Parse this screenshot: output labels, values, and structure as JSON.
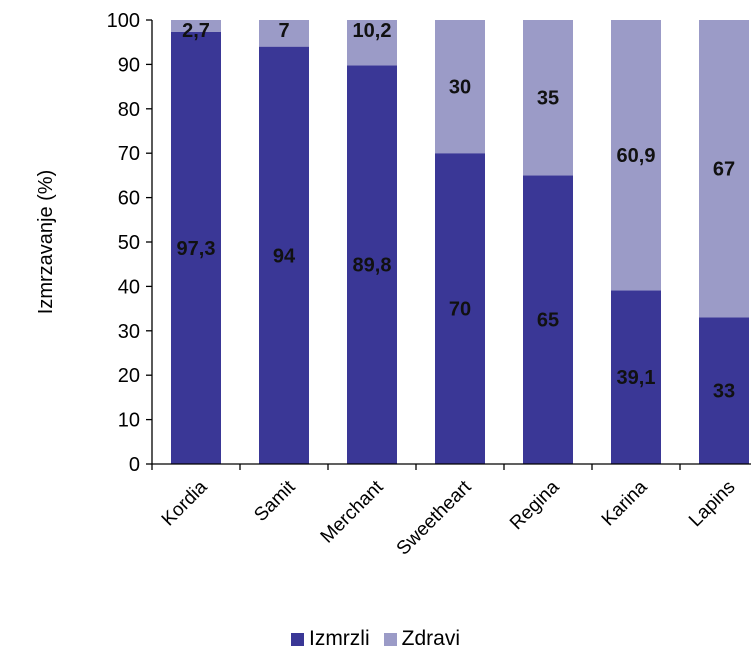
{
  "chart_data": {
    "type": "bar",
    "stacked": true,
    "categories": [
      "Kordia",
      "Samit",
      "Merchant",
      "Sweetheart",
      "Regina",
      "Karina",
      "Lapins"
    ],
    "series": [
      {
        "name": "Izmrzli",
        "values": [
          97.3,
          94,
          89.8,
          70,
          65,
          39.1,
          33
        ],
        "labels": [
          "97,3",
          "94",
          "89,8",
          "70",
          "65",
          "39,1",
          "33"
        ],
        "color": "#3a3796"
      },
      {
        "name": "Zdravi",
        "values": [
          2.7,
          7,
          10.2,
          30,
          35,
          60.9,
          67
        ],
        "labels": [
          "2,7",
          "7",
          "10,2",
          "30",
          "35",
          "60,9",
          "67"
        ],
        "color": "#9b9bc7"
      }
    ],
    "ylabel": "Izmrzavanje  (%)",
    "xlabel": "",
    "ylim": [
      0,
      100
    ],
    "yticks": [
      0,
      10,
      20,
      30,
      40,
      50,
      60,
      70,
      80,
      90,
      100
    ],
    "grid": false,
    "legend_position": "bottom"
  }
}
